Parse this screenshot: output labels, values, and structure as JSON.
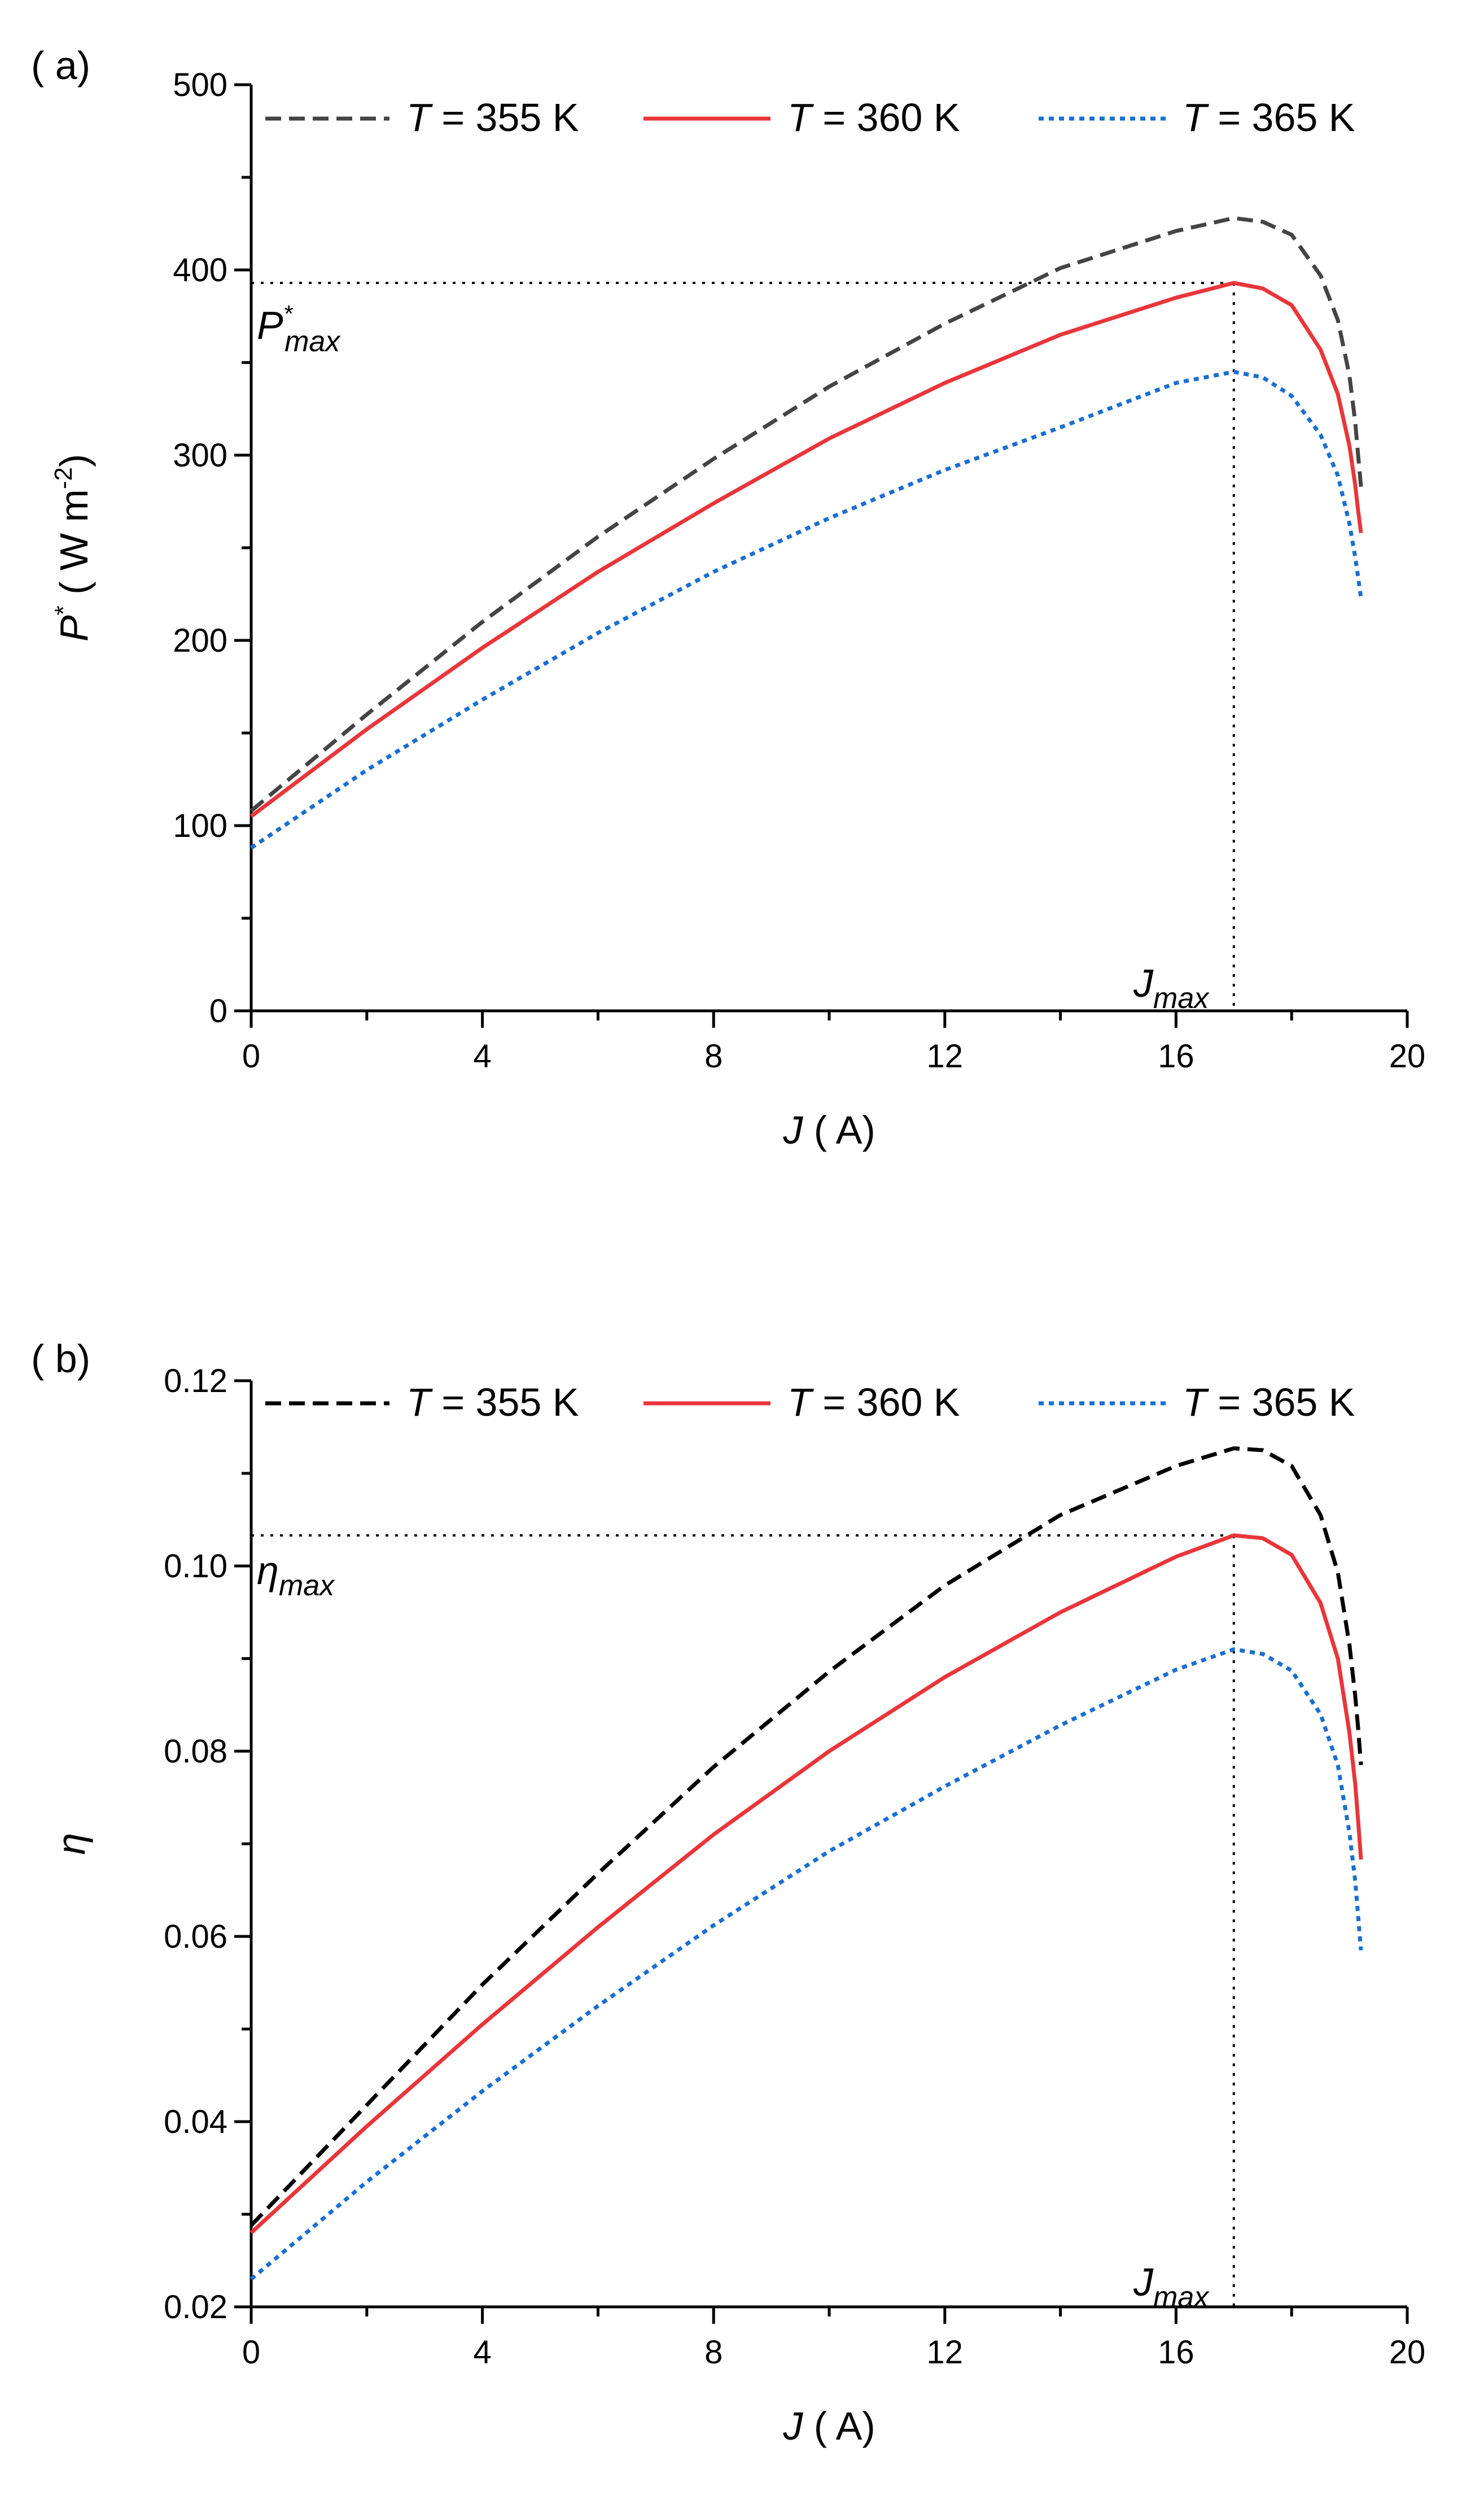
{
  "chart_data": [
    {
      "type": "line",
      "panel_label": "( a)",
      "xlabel": {
        "symbol": "J",
        "unit": "( A)"
      },
      "ylabel": {
        "symbol": "P",
        "sup": "*",
        "unit_open": "( W m",
        "unit_sup": "-2",
        "unit_close": ")"
      },
      "xlim": [
        0,
        20
      ],
      "ylim": [
        0,
        500
      ],
      "x_ticks": [
        0,
        4,
        8,
        12,
        16,
        20
      ],
      "x_tick_labels": [
        "0",
        "4",
        "8",
        "12",
        "16",
        "20"
      ],
      "y_ticks": [
        0,
        100,
        200,
        300,
        400,
        500
      ],
      "y_tick_labels": [
        "0",
        "100",
        "200",
        "300",
        "400",
        "500"
      ],
      "legend": {
        "placement": "top",
        "entries": [
          {
            "italic": "T",
            "text": " = 355 K"
          },
          {
            "italic": "T",
            "text": " = 360 K"
          },
          {
            "italic": "T",
            "text": " = 365 K"
          }
        ]
      },
      "series": [
        {
          "name": "T = 355 K",
          "color": "#444444",
          "dash": "dashed",
          "x": [
            0,
            2,
            4,
            6,
            8,
            10,
            12,
            14,
            16,
            17,
            17.5,
            18,
            18.5,
            18.8,
            19.0,
            19.1,
            19.15,
            19.2
          ],
          "y": [
            108,
            160,
            210,
            256,
            298,
            337,
            371,
            401,
            421,
            428,
            426,
            419,
            397,
            373,
            343,
            318,
            300,
            283
          ]
        },
        {
          "name": "T = 360 K",
          "color": "#e8363b",
          "dash": "solid",
          "x": [
            0,
            2,
            4,
            6,
            8,
            10,
            12,
            14,
            16,
            17,
            17.5,
            18,
            18.5,
            18.8,
            19.0,
            19.1,
            19.15,
            19.2
          ],
          "y": [
            105,
            152,
            196,
            237,
            274,
            309,
            339,
            365,
            385,
            393,
            390,
            381,
            357,
            333,
            305,
            284,
            270,
            258
          ]
        },
        {
          "name": "T = 365 K",
          "color": "#1a6fd1",
          "dash": "dotted",
          "x": [
            0,
            2,
            4,
            6,
            8,
            10,
            12,
            14,
            16,
            17,
            17.5,
            18,
            18.5,
            18.8,
            19.0,
            19.1,
            19.15,
            19.2
          ],
          "y": [
            88,
            130,
            168,
            204,
            237,
            266,
            292,
            315,
            339,
            345,
            342,
            332,
            311,
            289,
            263,
            245,
            234,
            223
          ]
        }
      ],
      "annotations": {
        "max_value": 393,
        "max_x": 17,
        "ymax_label": {
          "base": "P",
          "sup": "*",
          "sub": "max"
        },
        "xmax_label": {
          "base": "J",
          "sub": "max"
        }
      }
    },
    {
      "type": "line",
      "panel_label": "( b)",
      "xlabel": {
        "symbol": "J",
        "unit": "( A)"
      },
      "ylabel": {
        "symbol": "η"
      },
      "xlim": [
        0,
        20
      ],
      "ylim": [
        0.02,
        0.12
      ],
      "x_ticks": [
        0,
        4,
        8,
        12,
        16,
        20
      ],
      "x_tick_labels": [
        "0",
        "4",
        "8",
        "12",
        "16",
        "20"
      ],
      "y_ticks": [
        0.02,
        0.04,
        0.06,
        0.08,
        0.1,
        0.12
      ],
      "y_tick_labels": [
        "0.02",
        "0.04",
        "0.06",
        "0.08",
        "0.10",
        "0.12"
      ],
      "legend": {
        "placement": "top",
        "entries": [
          {
            "italic": "T",
            "text": " = 355 K"
          },
          {
            "italic": "T",
            "text": " = 360 K"
          },
          {
            "italic": "T",
            "text": " = 365 K"
          }
        ]
      },
      "series": [
        {
          "name": "T = 355 K",
          "color": "#000000",
          "dash": "dashed",
          "x": [
            0,
            2,
            4,
            6,
            8,
            10,
            12,
            14,
            16,
            17,
            17.5,
            18,
            18.5,
            18.8,
            19.0,
            19.1,
            19.15,
            19.2
          ],
          "y": [
            0.0288,
            0.0418,
            0.0548,
            0.0668,
            0.0783,
            0.0886,
            0.0979,
            0.1055,
            0.1108,
            0.1127,
            0.1125,
            0.1108,
            0.1055,
            0.0993,
            0.0915,
            0.086,
            0.0825,
            0.0785
          ]
        },
        {
          "name": "T = 360 K",
          "color": "#e8363b",
          "dash": "solid",
          "x": [
            0,
            2,
            4,
            6,
            8,
            10,
            12,
            14,
            16,
            17,
            17.5,
            18,
            18.5,
            18.8,
            19.0,
            19.1,
            19.15,
            19.2
          ],
          "y": [
            0.028,
            0.0395,
            0.0505,
            0.061,
            0.071,
            0.08,
            0.088,
            0.095,
            0.101,
            0.1033,
            0.103,
            0.1012,
            0.096,
            0.09,
            0.082,
            0.0765,
            0.0725,
            0.0683
          ]
        },
        {
          "name": "T = 365 K",
          "color": "#1a6fd1",
          "dash": "dotted",
          "x": [
            0,
            2,
            4,
            6,
            8,
            10,
            12,
            14,
            16,
            17,
            17.5,
            18,
            18.5,
            18.8,
            19.0,
            19.1,
            19.15,
            19.2
          ],
          "y": [
            0.023,
            0.0335,
            0.0433,
            0.0525,
            0.0612,
            0.0692,
            0.0762,
            0.0828,
            0.0888,
            0.091,
            0.0905,
            0.0887,
            0.084,
            0.0785,
            0.0712,
            0.066,
            0.0622,
            0.0585
          ]
        }
      ],
      "annotations": {
        "max_value": 0.1033,
        "max_x": 17,
        "ymax_label": {
          "base": "η",
          "sub": "max"
        },
        "xmax_label": {
          "base": "J",
          "sub": "max"
        }
      }
    }
  ]
}
